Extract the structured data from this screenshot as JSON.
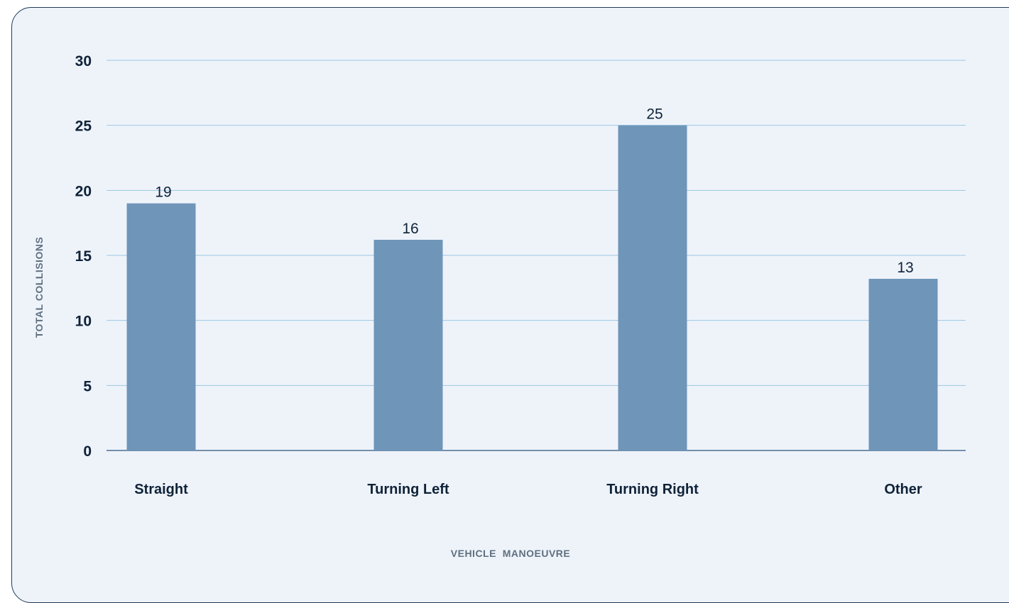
{
  "chart_data": {
    "type": "bar",
    "categories": [
      "Straight",
      "Turning Left",
      "Turning Right",
      "Other"
    ],
    "values": [
      19,
      16.2,
      25,
      13.2
    ],
    "value_labels": [
      "19",
      "16",
      "25",
      "13"
    ],
    "xlabel": "VEHICLE  MANOEUVRE",
    "ylabel": "TOTAL COLLISIONS",
    "ylim": [
      0,
      30
    ],
    "yticks": [
      "0",
      "5",
      "10",
      "15",
      "20",
      "25",
      "30"
    ],
    "grid": true,
    "legend": "none"
  },
  "colors": {
    "bar": "#6f95b9",
    "grid": "#9cc7e3",
    "axis": "#4a6f8f",
    "background": "#eef3fa",
    "border": "#1f3b57"
  }
}
